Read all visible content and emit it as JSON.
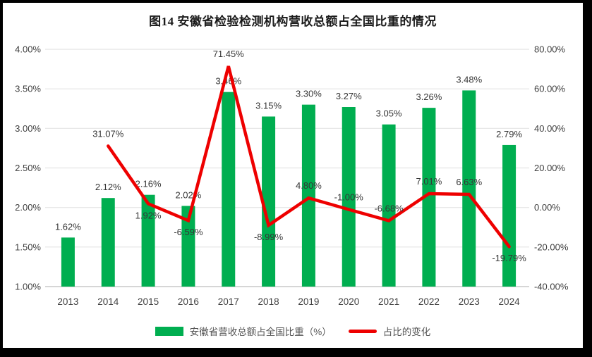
{
  "chart_data": {
    "type": "combo",
    "title": "图14 安徽省检验检测机构营收总额占全国比重的情况",
    "categories": [
      "2013",
      "2014",
      "2015",
      "2016",
      "2017",
      "2018",
      "2019",
      "2020",
      "2021",
      "2022",
      "2023",
      "2024"
    ],
    "series": [
      {
        "name": "安徽省营收总额占全国比重（%）",
        "type": "bar",
        "axis": "left",
        "color": "#00AE50",
        "values": [
          1.62,
          2.12,
          2.16,
          2.02,
          3.46,
          3.15,
          3.3,
          3.27,
          3.05,
          3.26,
          3.48,
          2.79
        ],
        "labels": [
          "1.62%",
          "2.12%",
          "2.16%",
          "2.02%",
          "3.46%",
          "3.15%",
          "3.30%",
          "3.27%",
          "3.05%",
          "3.26%",
          "3.48%",
          "2.79%"
        ]
      },
      {
        "name": "占比的变化",
        "type": "line",
        "axis": "right",
        "color": "#EE0000",
        "values": [
          null,
          31.07,
          1.92,
          -6.59,
          71.45,
          -8.99,
          4.8,
          -1.0,
          -6.68,
          7.01,
          6.63,
          -19.79
        ],
        "labels": [
          null,
          "31.07%",
          "1.92%",
          "-6.59%",
          "71.45%",
          "-8.99%",
          "4.80%",
          "-1.00%",
          "-6.68%",
          "7.01%",
          "6.63%",
          "-19.79%"
        ],
        "labels_below": [
          "2015",
          "2016",
          "2018",
          "2024"
        ]
      }
    ],
    "left_axis": {
      "min": 1.0,
      "max": 4.0,
      "step": 0.5,
      "ticks": [
        "4.00%",
        "3.50%",
        "3.00%",
        "2.50%",
        "2.00%",
        "1.50%",
        "1.00%"
      ]
    },
    "right_axis": {
      "min": -40,
      "max": 80,
      "step": 20,
      "ticks": [
        "80.00%",
        "60.00%",
        "40.00%",
        "20.00%",
        "0.00%",
        "-20.00%",
        "-40.00%"
      ]
    },
    "grid": true,
    "legend_position": "bottom",
    "colors": {
      "gridline": "#E4E4E4",
      "axis_line": "#C9C9C9",
      "frame_border": "#000000",
      "background": "#FFFFFF"
    }
  }
}
